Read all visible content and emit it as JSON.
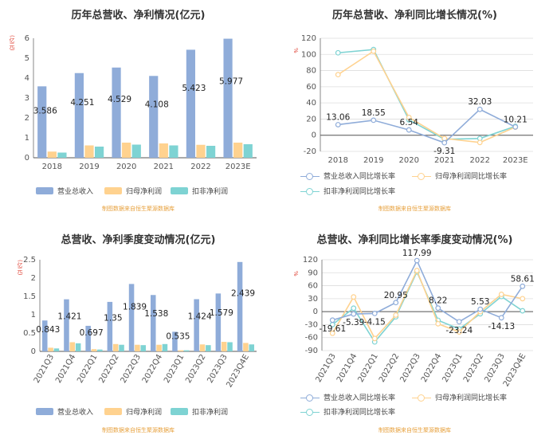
{
  "source_text": "制图数据来自恒生聚源数据库",
  "colors": {
    "revenue": "#8facd9",
    "net_profit": "#ffd28f",
    "deducted_profit": "#7ed3d3",
    "axis_text": "#555555",
    "grid": "#dddddd",
    "unit": "#e0473a",
    "source": "#e7a13e"
  },
  "chart_data": [
    {
      "type": "bar",
      "title": "历年总营收、净利情况(亿元)",
      "ylabel": "(亿元)",
      "ylim": [
        0,
        6
      ],
      "yticks": [
        0,
        1,
        2,
        3,
        4,
        5,
        6
      ],
      "categories": [
        "2018",
        "2019",
        "2020",
        "2021",
        "2022",
        "2023E"
      ],
      "series": [
        {
          "name": "营业总收入",
          "values": [
            3.586,
            4.251,
            4.529,
            4.108,
            5.423,
            5.977
          ]
        },
        {
          "name": "归母净利润",
          "values": [
            0.31,
            0.62,
            0.76,
            0.72,
            0.65,
            0.76
          ]
        },
        {
          "name": "扣非净利润",
          "values": [
            0.26,
            0.56,
            0.66,
            0.62,
            0.6,
            0.68
          ]
        }
      ],
      "data_labels": [
        "3.586",
        "4.251",
        "4.529",
        "4.108",
        "5.423",
        "5.977"
      ],
      "legend": "bottom",
      "grid": false
    },
    {
      "type": "line",
      "title": "历年总营收、净利同比增长情况(%)",
      "ylabel": "%",
      "ylim": [
        -20,
        120
      ],
      "yticks": [
        -20,
        0,
        20,
        40,
        60,
        80,
        100,
        120
      ],
      "categories": [
        "2018",
        "2019",
        "2020",
        "2021",
        "2022",
        "2023E"
      ],
      "series": [
        {
          "name": "营业总收入同比增长率",
          "values": [
            13.06,
            18.55,
            6.54,
            -9.31,
            32.03,
            10.21
          ]
        },
        {
          "name": "归母净利润同比增长率",
          "values": [
            75,
            104,
            22,
            -4,
            -9,
            10
          ]
        },
        {
          "name": "扣非净利润同比增长率",
          "values": [
            102,
            106,
            19,
            -5,
            -4,
            11
          ]
        }
      ],
      "data_labels": [
        "13.06",
        "18.55",
        "6.54",
        "-9.31",
        "32.03",
        "10.21"
      ],
      "legend": "bottom",
      "grid": true
    },
    {
      "type": "bar",
      "title": "总营收、净利季度变动情况(亿元)",
      "ylabel": "(亿元)",
      "ylim": [
        0,
        2.5
      ],
      "yticks": [
        0,
        0.5,
        1,
        1.5,
        2,
        2.5
      ],
      "categories": [
        "2021Q3",
        "2021Q4",
        "2022Q1",
        "2022Q2",
        "2022Q3",
        "2022Q4",
        "2023Q1",
        "2023Q2",
        "2023Q3",
        "2023Q4E"
      ],
      "series": [
        {
          "name": "营业总收入",
          "values": [
            0.843,
            1.421,
            0.697,
            1.35,
            1.839,
            1.538,
            0.535,
            1.424,
            1.579,
            2.439
          ]
        },
        {
          "name": "归母净利润",
          "values": [
            0.1,
            0.25,
            0.06,
            0.2,
            0.18,
            0.18,
            0.03,
            0.19,
            0.26,
            0.23
          ]
        },
        {
          "name": "扣非净利润",
          "values": [
            0.08,
            0.22,
            0.05,
            0.18,
            0.17,
            0.2,
            0.03,
            0.17,
            0.25,
            0.19
          ]
        }
      ],
      "data_labels": [
        "0.843",
        "1.421",
        "0.697",
        "1.35",
        "1.839",
        "1.538",
        "0.535",
        "1.424",
        "1.579",
        "2.439"
      ],
      "legend": "bottom",
      "grid": false
    },
    {
      "type": "line",
      "title": "总营收、净利同比增长率季度变动情况(%)",
      "ylabel": "%",
      "ylim": [
        -90,
        120
      ],
      "yticks": [
        -90,
        -60,
        -30,
        0,
        30,
        60,
        90,
        120
      ],
      "categories": [
        "2021Q3",
        "2021Q4",
        "2022Q1",
        "2022Q2",
        "2022Q3",
        "2022Q4",
        "2023Q1",
        "2023Q2",
        "2023Q3",
        "2023Q4E"
      ],
      "series": [
        {
          "name": "营业总收入同比增长率",
          "values": [
            -19.61,
            -5.39,
            -4.15,
            20.95,
            117.99,
            8.22,
            -23.24,
            5.53,
            -14.13,
            58.61
          ]
        },
        {
          "name": "归母净利润同比增长率",
          "values": [
            -50,
            34,
            -62,
            -8,
            95,
            -28,
            -47,
            0,
            40,
            30
          ]
        },
        {
          "name": "扣非净利润同比增长率",
          "values": [
            -30,
            8,
            -70,
            -12,
            92,
            -20,
            -40,
            -5,
            35,
            2
          ]
        }
      ],
      "data_labels": [
        "-19.61",
        "-5.39",
        "-4.15",
        "20.95",
        "117.99",
        "8.22",
        "-23.24",
        "5.53",
        "-14.13",
        "58.61"
      ],
      "legend": "bottom",
      "grid": true
    }
  ]
}
